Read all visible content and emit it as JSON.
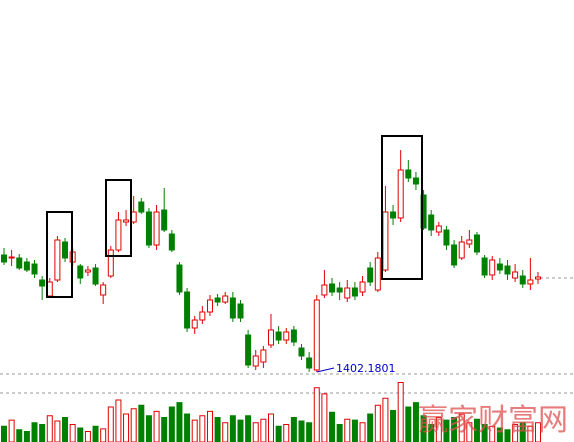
{
  "chart_data": {
    "type": "candlestick",
    "up_color": "#e00000",
    "down_color": "#008000",
    "ylim": [
      1332,
      1774
    ],
    "volume_ylim": [
      0,
      80
    ],
    "annotation": "1402.1801",
    "watermark": "赢家财富网",
    "open": [
      1519,
      1516,
      1516,
      1512,
      1510,
      1494,
      1478,
      1494,
      1532,
      1512,
      1508,
      1502,
      1506,
      1479,
      1498,
      1524,
      1552,
      1552,
      1572,
      1562,
      1529,
      1564,
      1540,
      1509,
      1482,
      1446,
      1454,
      1462,
      1476,
      1472,
      1476,
      1470,
      1439,
      1408,
      1412,
      1429,
      1442,
      1434,
      1444,
      1426,
      1416,
      1404,
      1479,
      1490,
      1486,
      1476,
      1486,
      1482,
      1506,
      1484,
      1504,
      1562,
      1556,
      1604,
      1596,
      1579,
      1559,
      1542,
      1544,
      1529,
      1516,
      1530,
      1539,
      1516,
      1499,
      1510,
      1508,
      1496,
      1498,
      1490,
      1495
    ],
    "high": [
      1526,
      1524,
      1520,
      1516,
      1514,
      1498,
      1496,
      1538,
      1536,
      1526,
      1510,
      1508,
      1510,
      1492,
      1528,
      1562,
      1564,
      1578,
      1576,
      1566,
      1569,
      1586,
      1544,
      1512,
      1486,
      1458,
      1468,
      1479,
      1480,
      1482,
      1482,
      1474,
      1444,
      1424,
      1428,
      1460,
      1448,
      1446,
      1448,
      1430,
      1422,
      1479,
      1504,
      1496,
      1492,
      1494,
      1492,
      1498,
      1512,
      1522,
      1588,
      1569,
      1624,
      1614,
      1602,
      1584,
      1564,
      1552,
      1548,
      1534,
      1538,
      1544,
      1542,
      1519,
      1518,
      1516,
      1514,
      1510,
      1504,
      1516,
      1502
    ],
    "low": [
      1509,
      1508,
      1504,
      1502,
      1496,
      1474,
      1476,
      1492,
      1512,
      1508,
      1490,
      1498,
      1488,
      1470,
      1496,
      1522,
      1548,
      1550,
      1560,
      1526,
      1524,
      1542,
      1522,
      1479,
      1442,
      1440,
      1450,
      1458,
      1468,
      1470,
      1452,
      1452,
      1406,
      1404,
      1406,
      1426,
      1430,
      1430,
      1428,
      1414,
      1402.1801,
      1402,
      1476,
      1478,
      1474,
      1472,
      1474,
      1478,
      1488,
      1482,
      1502,
      1549,
      1552,
      1592,
      1584,
      1544,
      1538,
      1538,
      1524,
      1506,
      1514,
      1526,
      1519,
      1496,
      1494,
      1500,
      1494,
      1492,
      1486,
      1484,
      1490
    ],
    "close": [
      1512,
      1517,
      1506,
      1504,
      1500,
      1488,
      1492,
      1534,
      1516,
      1522,
      1496,
      1504,
      1490,
      1489,
      1524,
      1554,
      1554,
      1562,
      1562,
      1529,
      1562,
      1544,
      1524,
      1482,
      1446,
      1454,
      1462,
      1474,
      1472,
      1478,
      1456,
      1456,
      1409,
      1418,
      1424,
      1444,
      1434,
      1442,
      1432,
      1418,
      1406,
      1474,
      1489,
      1482,
      1482,
      1486,
      1478,
      1492,
      1492,
      1516,
      1562,
      1556,
      1604,
      1596,
      1590,
      1546,
      1544,
      1548,
      1529,
      1509,
      1532,
      1534,
      1522,
      1499,
      1514,
      1504,
      1500,
      1502,
      1490,
      1494,
      1497
    ],
    "volume": [
      18,
      25,
      14,
      12,
      22,
      20,
      30,
      24,
      28,
      20,
      16,
      12,
      18,
      15,
      40,
      48,
      32,
      38,
      42,
      30,
      35,
      28,
      40,
      45,
      32,
      25,
      30,
      35,
      28,
      22,
      30,
      25,
      30,
      22,
      26,
      32,
      18,
      20,
      28,
      24,
      22,
      62,
      55,
      34,
      20,
      26,
      25,
      22,
      32,
      42,
      50,
      36,
      68,
      40,
      45,
      30,
      20,
      28,
      25,
      28,
      32,
      22,
      26,
      20,
      18,
      16,
      14,
      20,
      22,
      18,
      22
    ]
  }
}
